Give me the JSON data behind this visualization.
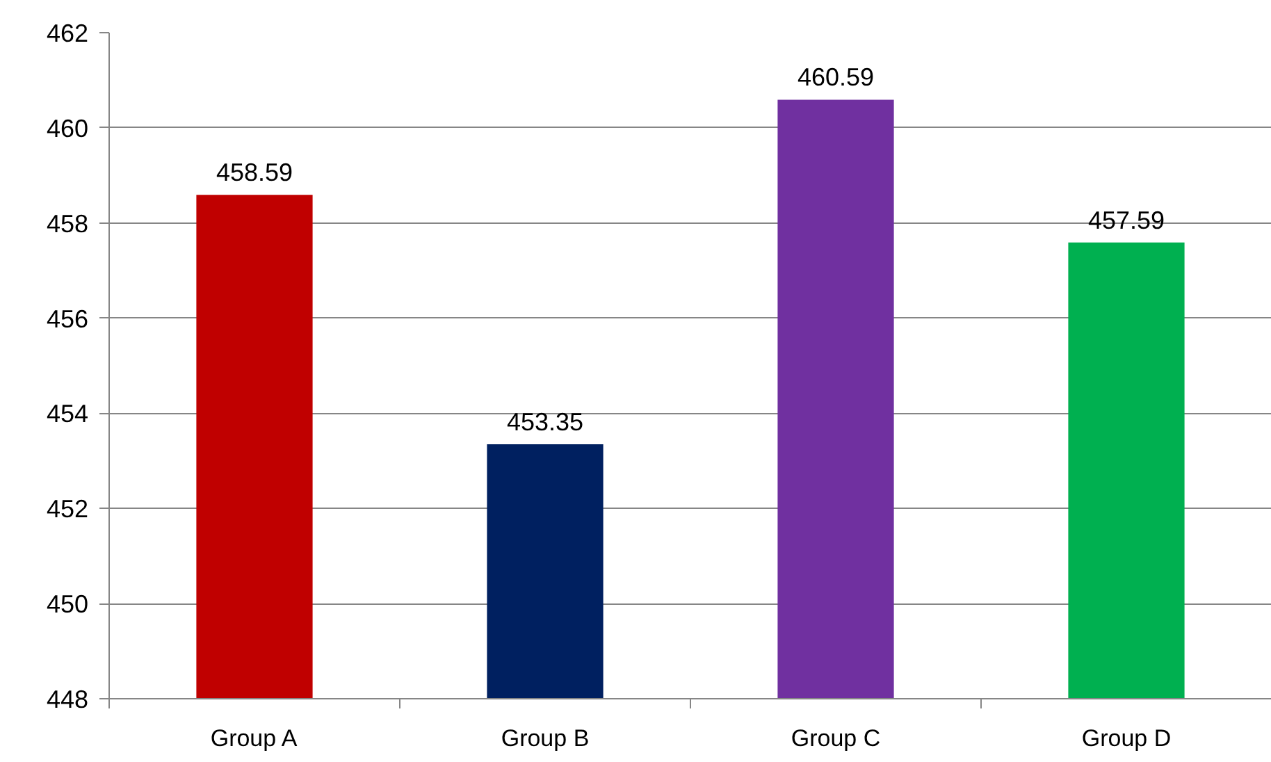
{
  "chart_data": {
    "type": "bar",
    "categories": [
      "Group A",
      "Group B",
      "Group C",
      "Group D"
    ],
    "values": [
      458.59,
      453.35,
      460.59,
      457.59
    ],
    "colors": [
      "#c00000",
      "#002060",
      "#7030a0",
      "#00b050"
    ],
    "ylim": [
      448,
      462
    ],
    "yticks": [
      448,
      450,
      452,
      454,
      456,
      458,
      460,
      462
    ],
    "grid": "y",
    "data_labels": true
  }
}
